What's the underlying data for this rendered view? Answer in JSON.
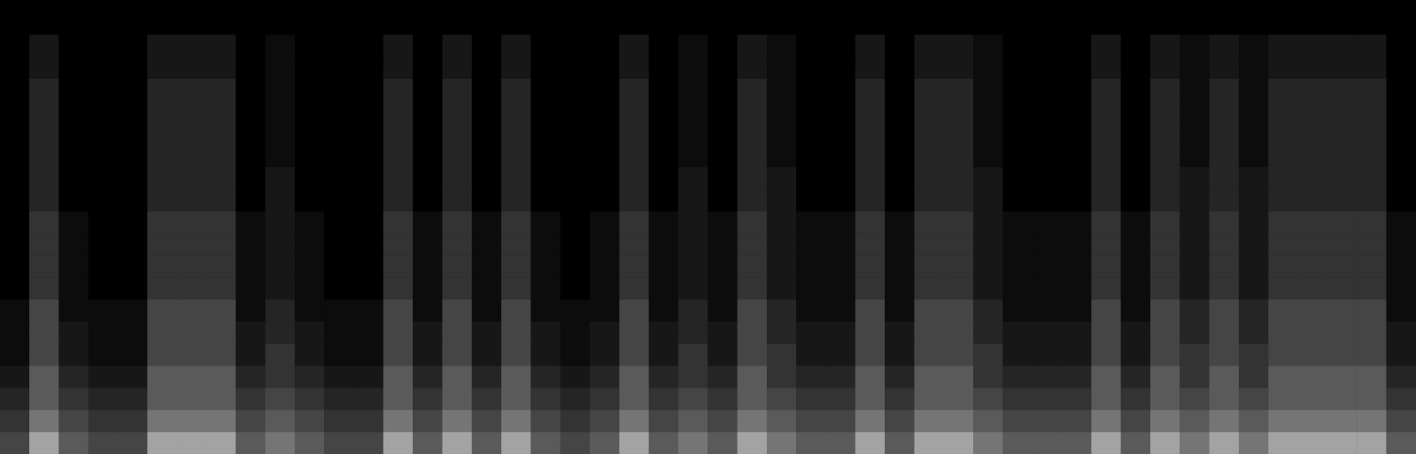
{
  "chart_data": {
    "type": "heatmap",
    "tick_labels": false,
    "grid": false,
    "zlim": [
      0,
      9
    ],
    "cells": [
      [
        5,
        8,
        6,
        5,
        5,
        8,
        8,
        8,
        6,
        7,
        6,
        5,
        5,
        8,
        6,
        8,
        6,
        8,
        6,
        5,
        6,
        8,
        6,
        7,
        6,
        8,
        7,
        6,
        6,
        8,
        6,
        8,
        8,
        7,
        6,
        6,
        6,
        8,
        6,
        8,
        7,
        8,
        7,
        8,
        8,
        8,
        8,
        6
      ],
      [
        4,
        7,
        5,
        4,
        4,
        7,
        7,
        7,
        5,
        6,
        5,
        4,
        4,
        7,
        5,
        7,
        5,
        7,
        5,
        4,
        5,
        7,
        5,
        6,
        5,
        7,
        6,
        5,
        5,
        7,
        5,
        7,
        7,
        6,
        5,
        5,
        5,
        7,
        5,
        7,
        6,
        7,
        6,
        7,
        7,
        7,
        7,
        5
      ],
      [
        3,
        6,
        4,
        3,
        3,
        6,
        6,
        6,
        4,
        5,
        4,
        3,
        3,
        6,
        4,
        6,
        4,
        6,
        4,
        3,
        4,
        6,
        4,
        5,
        4,
        6,
        5,
        4,
        4,
        6,
        4,
        6,
        6,
        5,
        4,
        4,
        4,
        6,
        4,
        6,
        5,
        6,
        5,
        6,
        6,
        6,
        6,
        4
      ],
      [
        2,
        6,
        3,
        2,
        2,
        6,
        6,
        6,
        3,
        4,
        3,
        2,
        2,
        6,
        3,
        6,
        3,
        6,
        3,
        2,
        3,
        6,
        3,
        4,
        3,
        6,
        4,
        3,
        3,
        6,
        3,
        6,
        6,
        4,
        3,
        3,
        3,
        6,
        3,
        6,
        4,
        6,
        4,
        6,
        6,
        6,
        6,
        3
      ],
      [
        1,
        5,
        2,
        1,
        1,
        5,
        5,
        5,
        2,
        4,
        2,
        1,
        1,
        5,
        2,
        5,
        2,
        5,
        2,
        1,
        2,
        5,
        2,
        4,
        2,
        5,
        4,
        2,
        2,
        5,
        2,
        5,
        5,
        4,
        2,
        2,
        2,
        5,
        2,
        5,
        4,
        5,
        4,
        5,
        5,
        5,
        5,
        2
      ],
      [
        1,
        5,
        2,
        1,
        1,
        5,
        5,
        5,
        2,
        3,
        2,
        1,
        1,
        5,
        2,
        5,
        2,
        5,
        2,
        1,
        2,
        5,
        2,
        3,
        2,
        5,
        3,
        2,
        2,
        5,
        2,
        5,
        5,
        3,
        2,
        2,
        2,
        5,
        2,
        5,
        3,
        5,
        3,
        5,
        5,
        5,
        5,
        2
      ],
      [
        1,
        5,
        1,
        1,
        1,
        5,
        5,
        5,
        1,
        3,
        1,
        1,
        1,
        5,
        1,
        5,
        1,
        5,
        1,
        1,
        1,
        5,
        1,
        3,
        1,
        5,
        3,
        1,
        1,
        5,
        1,
        5,
        5,
        3,
        1,
        1,
        1,
        5,
        1,
        5,
        3,
        5,
        3,
        5,
        5,
        5,
        5,
        1
      ],
      [
        0,
        4,
        1,
        0,
        0,
        4,
        4,
        4,
        1,
        2,
        1,
        0,
        0,
        4,
        1,
        4,
        1,
        4,
        1,
        0,
        1,
        4,
        1,
        2,
        1,
        4,
        2,
        1,
        1,
        4,
        1,
        4,
        4,
        2,
        1,
        1,
        1,
        4,
        1,
        4,
        2,
        4,
        2,
        4,
        4,
        4,
        4,
        1
      ],
      [
        0,
        4,
        1,
        0,
        0,
        4,
        4,
        4,
        1,
        2,
        1,
        0,
        0,
        4,
        1,
        4,
        1,
        4,
        1,
        0,
        1,
        4,
        1,
        2,
        1,
        4,
        2,
        1,
        1,
        4,
        1,
        4,
        4,
        2,
        1,
        1,
        1,
        4,
        1,
        4,
        2,
        4,
        2,
        4,
        4,
        4,
        4,
        1
      ],
      [
        0,
        4,
        1,
        0,
        0,
        4,
        4,
        4,
        1,
        2,
        1,
        0,
        0,
        4,
        1,
        4,
        1,
        4,
        1,
        0,
        1,
        4,
        1,
        2,
        1,
        4,
        2,
        1,
        1,
        4,
        1,
        4,
        4,
        2,
        1,
        1,
        1,
        4,
        1,
        4,
        2,
        4,
        2,
        4,
        4,
        4,
        4,
        1
      ],
      [
        0,
        4,
        1,
        0,
        0,
        4,
        4,
        4,
        1,
        2,
        1,
        0,
        0,
        4,
        1,
        4,
        1,
        4,
        1,
        0,
        1,
        4,
        1,
        2,
        1,
        4,
        2,
        1,
        1,
        4,
        1,
        4,
        4,
        2,
        1,
        1,
        1,
        4,
        1,
        4,
        2,
        4,
        2,
        4,
        4,
        4,
        4,
        1
      ],
      [
        0,
        3,
        0,
        0,
        0,
        3,
        3,
        3,
        0,
        2,
        0,
        0,
        0,
        3,
        0,
        3,
        0,
        3,
        0,
        0,
        0,
        3,
        0,
        2,
        0,
        3,
        2,
        0,
        0,
        3,
        0,
        3,
        3,
        2,
        0,
        0,
        0,
        3,
        0,
        3,
        2,
        3,
        2,
        3,
        3,
        3,
        3,
        0
      ],
      [
        0,
        3,
        0,
        0,
        0,
        3,
        3,
        3,
        0,
        2,
        0,
        0,
        0,
        3,
        0,
        3,
        0,
        3,
        0,
        0,
        0,
        3,
        0,
        2,
        0,
        3,
        2,
        0,
        0,
        3,
        0,
        3,
        3,
        2,
        0,
        0,
        0,
        3,
        0,
        3,
        2,
        3,
        2,
        3,
        3,
        3,
        3,
        0
      ],
      [
        0,
        3,
        0,
        0,
        0,
        3,
        3,
        3,
        0,
        1,
        0,
        0,
        0,
        3,
        0,
        3,
        0,
        3,
        0,
        0,
        0,
        3,
        0,
        1,
        0,
        3,
        1,
        0,
        0,
        3,
        0,
        3,
        3,
        1,
        0,
        0,
        0,
        3,
        0,
        3,
        1,
        3,
        1,
        3,
        3,
        3,
        3,
        0
      ],
      [
        0,
        3,
        0,
        0,
        0,
        3,
        3,
        3,
        0,
        1,
        0,
        0,
        0,
        3,
        0,
        3,
        0,
        3,
        0,
        0,
        0,
        3,
        0,
        1,
        0,
        3,
        1,
        0,
        0,
        3,
        0,
        3,
        3,
        1,
        0,
        0,
        0,
        3,
        0,
        3,
        1,
        3,
        1,
        3,
        3,
        3,
        3,
        0
      ],
      [
        0,
        3,
        0,
        0,
        0,
        3,
        3,
        3,
        0,
        1,
        0,
        0,
        0,
        3,
        0,
        3,
        0,
        3,
        0,
        0,
        0,
        3,
        0,
        1,
        0,
        3,
        1,
        0,
        0,
        3,
        0,
        3,
        3,
        1,
        0,
        0,
        0,
        3,
        0,
        3,
        1,
        3,
        1,
        3,
        3,
        3,
        3,
        0
      ],
      [
        0,
        3,
        0,
        0,
        0,
        3,
        3,
        3,
        0,
        1,
        0,
        0,
        0,
        3,
        0,
        3,
        0,
        3,
        0,
        0,
        0,
        3,
        0,
        1,
        0,
        3,
        1,
        0,
        0,
        3,
        0,
        3,
        3,
        1,
        0,
        0,
        0,
        3,
        0,
        3,
        1,
        3,
        1,
        3,
        3,
        3,
        3,
        0
      ],
      [
        0,
        2,
        0,
        0,
        0,
        2,
        2,
        2,
        0,
        1,
        0,
        0,
        0,
        2,
        0,
        2,
        0,
        2,
        0,
        0,
        0,
        2,
        0,
        1,
        0,
        2,
        1,
        0,
        0,
        2,
        0,
        2,
        2,
        1,
        0,
        0,
        0,
        2,
        0,
        2,
        1,
        2,
        1,
        2,
        2,
        2,
        2,
        0
      ],
      [
        0,
        2,
        0,
        0,
        0,
        2,
        2,
        2,
        0,
        1,
        0,
        0,
        0,
        2,
        0,
        2,
        0,
        2,
        0,
        0,
        0,
        2,
        0,
        1,
        0,
        2,
        1,
        0,
        0,
        2,
        0,
        2,
        2,
        1,
        0,
        0,
        0,
        2,
        0,
        2,
        1,
        2,
        1,
        2,
        2,
        2,
        2,
        0
      ],
      [
        0,
        0,
        0,
        0,
        0,
        0,
        0,
        0,
        0,
        0,
        0,
        0,
        0,
        0,
        0,
        0,
        0,
        0,
        0,
        0,
        0,
        0,
        0,
        0,
        0,
        0,
        0,
        0,
        0,
        0,
        0,
        0,
        0,
        0,
        0,
        0,
        0,
        0,
        0,
        0,
        0,
        0,
        0,
        0,
        0,
        0,
        0,
        0
      ]
    ]
  }
}
